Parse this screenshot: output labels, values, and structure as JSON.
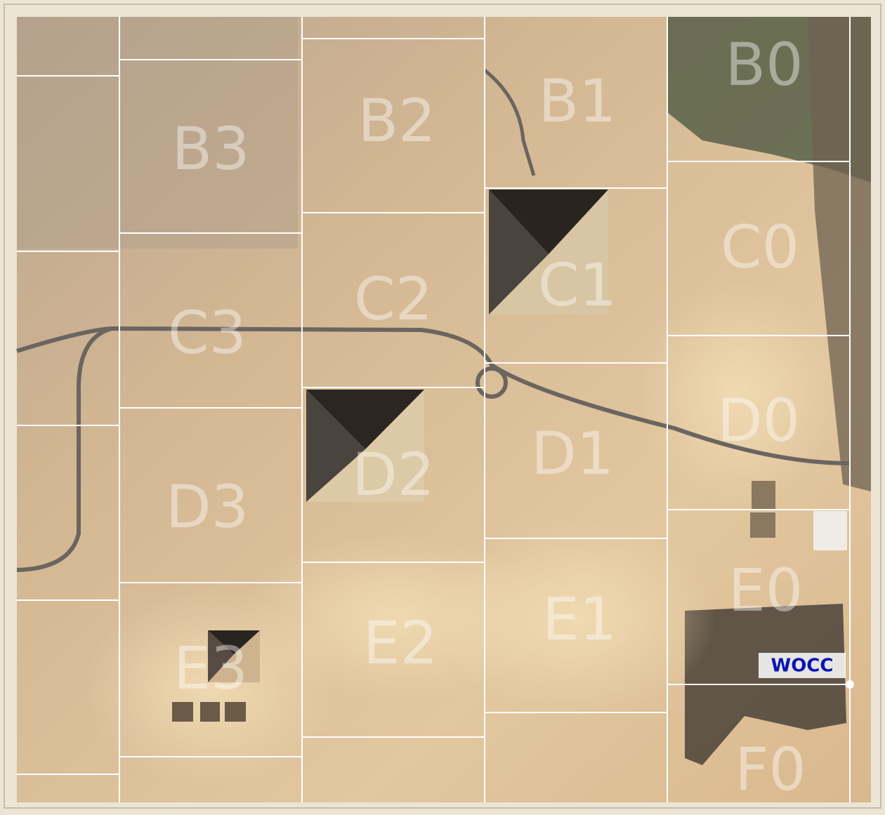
{
  "grid_labels": [
    "B0",
    "B1",
    "B2",
    "B3",
    "C0",
    "C1",
    "C2",
    "C3",
    "D0",
    "D1",
    "D2",
    "D3",
    "E0",
    "E1",
    "E2",
    "E3",
    "F0"
  ],
  "marker": "WOCC"
}
